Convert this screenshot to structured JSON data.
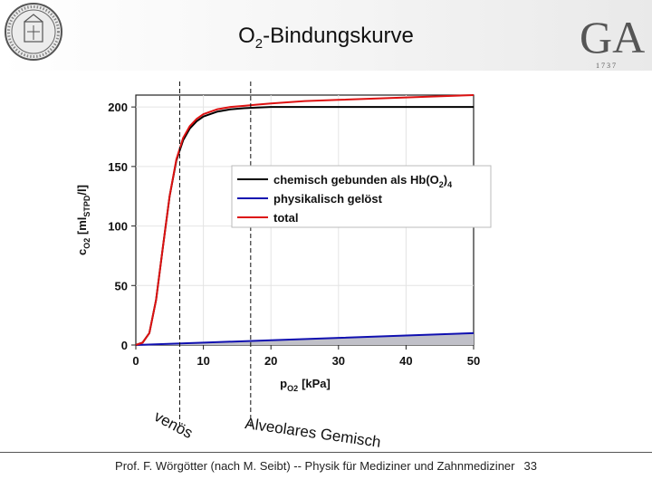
{
  "header": {
    "title_prefix": "O",
    "title_sub": "2",
    "title_suffix": "-Bindungskurve",
    "logo_letters": "GA",
    "logo_year": "1 7 3 7"
  },
  "annotations": {
    "venous": "venös",
    "alveolar": "Alveolares Gemisch"
  },
  "footer": {
    "text": "Prof. F. Wörgötter (nach M. Seibt) -- Physik für Mediziner und Zahnmediziner",
    "page": "33"
  },
  "colors": {
    "chemisch": "#000000",
    "physikalisch": "#1010b0",
    "total": "#dd1111",
    "fill": "#c0c0c8"
  },
  "chart_data": {
    "type": "line",
    "xlabel_main": "p",
    "xlabel_sub": "O2",
    "xlabel_unit": "[kPa]",
    "ylabel_main": "c",
    "ylabel_sub1": "O2",
    "ylabel_mid": " [ml",
    "ylabel_sub2": "STPD",
    "ylabel_end": "/l]",
    "xlim": [
      0,
      50
    ],
    "ylim": [
      0,
      210
    ],
    "x_ticks": [
      0,
      10,
      20,
      30,
      40,
      50
    ],
    "y_ticks": [
      0,
      50,
      100,
      150,
      200
    ],
    "vlines": [
      6.5,
      17
    ],
    "legend_position": "center-right",
    "series": [
      {
        "name": "chemisch gebunden als Hb(O2)4",
        "name_parts": [
          "chemisch gebunden als Hb(O",
          "2",
          ")",
          "4"
        ],
        "x": [
          0,
          1,
          2,
          3,
          4,
          5,
          6,
          7,
          8,
          9,
          10,
          12,
          14,
          16,
          18,
          20,
          25,
          30,
          40,
          50
        ],
        "y": [
          0,
          2,
          10,
          38,
          82,
          125,
          155,
          172,
          182,
          188,
          192,
          196,
          198,
          199,
          199.5,
          200,
          200,
          200,
          200,
          200
        ]
      },
      {
        "name": "physikalisch gelöst",
        "name_parts": [
          "physikalisch gelöst"
        ],
        "x": [
          0,
          10,
          20,
          30,
          40,
          50
        ],
        "y": [
          0,
          2,
          4,
          6,
          8,
          10
        ]
      },
      {
        "name": "total",
        "name_parts": [
          "total"
        ],
        "x": [
          0,
          1,
          2,
          3,
          4,
          5,
          6,
          7,
          8,
          9,
          10,
          12,
          14,
          16,
          18,
          20,
          25,
          30,
          40,
          50
        ],
        "y": [
          0,
          2,
          10,
          38,
          82,
          125,
          156,
          174,
          184,
          190,
          194,
          198,
          200,
          201,
          202,
          203,
          205,
          206,
          208,
          210
        ]
      }
    ]
  }
}
